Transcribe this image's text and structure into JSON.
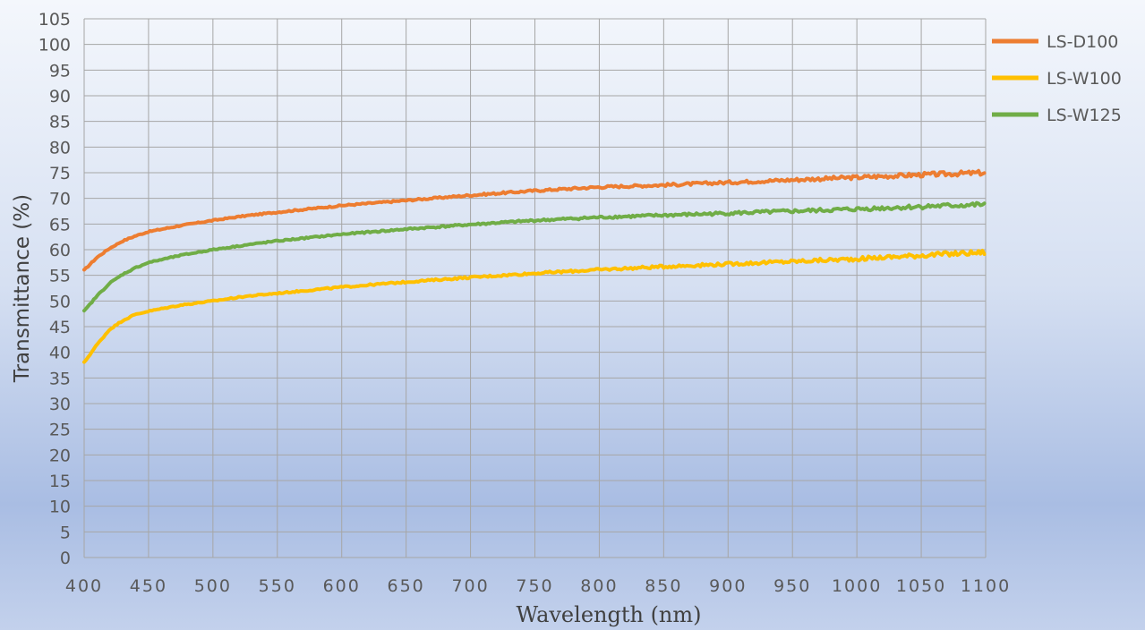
{
  "chart_data": {
    "type": "line",
    "xlabel": "Wavelength (nm)",
    "ylabel": "Transmittance (%)",
    "xlim": [
      400,
      1100
    ],
    "ylim": [
      0,
      105
    ],
    "x_ticks": [
      400,
      450,
      500,
      550,
      600,
      650,
      700,
      750,
      800,
      850,
      900,
      950,
      1000,
      1050,
      1100
    ],
    "y_ticks": [
      0,
      5,
      10,
      15,
      20,
      25,
      30,
      35,
      40,
      45,
      50,
      55,
      60,
      65,
      70,
      75,
      80,
      85,
      90,
      95,
      100,
      105
    ],
    "grid": true,
    "legend_position": "right",
    "series": [
      {
        "name": "LS-D100",
        "color": "#ED7D31",
        "x": [
          400,
          410,
          420,
          430,
          440,
          450,
          475,
          500,
          525,
          550,
          600,
          650,
          700,
          750,
          800,
          850,
          900,
          950,
          1000,
          1050,
          1100
        ],
        "values": [
          56,
          58.5,
          60.3,
          61.7,
          62.7,
          63.5,
          64.7,
          65.7,
          66.6,
          67.3,
          68.6,
          69.6,
          70.6,
          71.5,
          72.2,
          72.6,
          73.1,
          73.6,
          74.1,
          74.6,
          75
        ]
      },
      {
        "name": "LS-W100",
        "color": "#FFC000",
        "x": [
          400,
          410,
          420,
          430,
          440,
          450,
          475,
          500,
          525,
          550,
          600,
          650,
          700,
          750,
          800,
          850,
          900,
          950,
          1000,
          1050,
          1100
        ],
        "values": [
          38,
          41.5,
          44.5,
          46.2,
          47.4,
          48,
          49.2,
          50,
          50.9,
          51.5,
          52.7,
          53.7,
          54.6,
          55.4,
          56.1,
          56.7,
          57.2,
          57.7,
          58.2,
          58.9,
          59.5
        ]
      },
      {
        "name": "LS-W125",
        "color": "#70AD47",
        "x": [
          400,
          410,
          420,
          430,
          440,
          450,
          475,
          500,
          525,
          550,
          600,
          650,
          700,
          750,
          800,
          850,
          900,
          950,
          1000,
          1050,
          1100
        ],
        "values": [
          48,
          51,
          53.5,
          55.2,
          56.5,
          57.5,
          58.9,
          60,
          60.9,
          61.7,
          63,
          64,
          64.9,
          65.7,
          66.3,
          66.7,
          67.1,
          67.5,
          67.9,
          68.4,
          68.8
        ]
      }
    ]
  }
}
